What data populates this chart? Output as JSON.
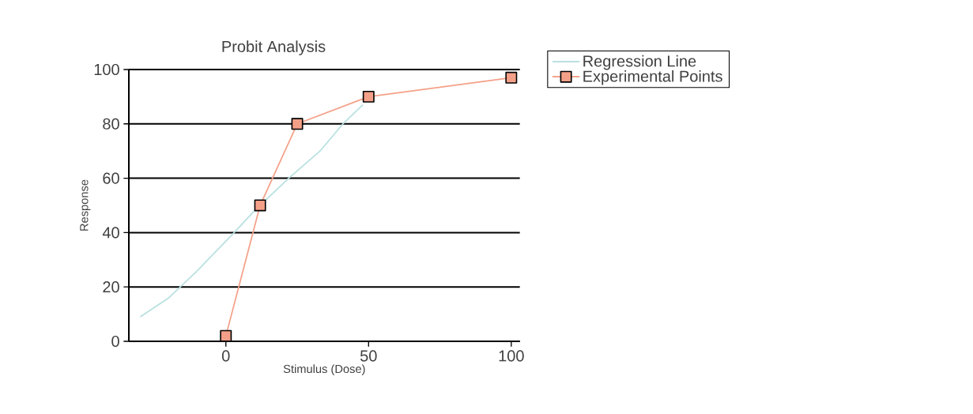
{
  "chart_data": {
    "type": "line",
    "title": "Probit Analysis",
    "xlabel": "Stimulus (Dose)",
    "ylabel": "Response",
    "xlim": [
      -34,
      103
    ],
    "xticks": [
      0,
      50,
      100
    ],
    "ylim": [
      0,
      100
    ],
    "yticks": [
      0,
      20,
      40,
      60,
      80,
      100
    ],
    "grid": "y",
    "legend": "top right",
    "series": [
      {
        "name": "Regression Line",
        "color": "#b8e0e0",
        "marker": "none",
        "x": [
          -30,
          -20,
          -16,
          -10,
          2,
          10,
          22,
          33,
          41,
          48
        ],
        "values": [
          9,
          16,
          20,
          26,
          39,
          48,
          60,
          70,
          80,
          87
        ]
      },
      {
        "name": "Experimental Points",
        "color": "#f4a088",
        "marker": "square",
        "x": [
          0,
          12,
          25,
          50,
          100
        ],
        "values": [
          2,
          50,
          80,
          90,
          97
        ]
      }
    ]
  }
}
